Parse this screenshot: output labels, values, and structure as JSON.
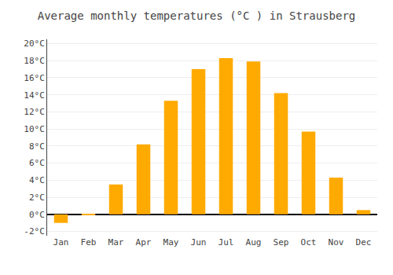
{
  "chart_data": {
    "type": "bar",
    "title": "Average monthly temperatures (°C ) in Strausberg",
    "categories": [
      "Jan",
      "Feb",
      "Mar",
      "Apr",
      "May",
      "Jun",
      "Jul",
      "Aug",
      "Sep",
      "Oct",
      "Nov",
      "Dec"
    ],
    "values": [
      -1.0,
      -0.1,
      3.5,
      8.2,
      13.3,
      17.0,
      18.3,
      17.9,
      14.2,
      9.7,
      4.3,
      0.5
    ],
    "color": "#FFAA00",
    "ylim": [
      -2.5,
      20.5
    ],
    "yticks": [
      {
        "value": -2,
        "label": "-2°C"
      },
      {
        "value": 0,
        "label": "0°C"
      },
      {
        "value": 2,
        "label": "2°C"
      },
      {
        "value": 4,
        "label": "4°C"
      },
      {
        "value": 6,
        "label": "6°C"
      },
      {
        "value": 8,
        "label": "8°C"
      },
      {
        "value": 10,
        "label": "10°C"
      },
      {
        "value": 12,
        "label": "12°C"
      },
      {
        "value": 14,
        "label": "14°C"
      },
      {
        "value": 16,
        "label": "16°C"
      },
      {
        "value": 18,
        "label": "18°C"
      },
      {
        "value": 20,
        "label": "20°C"
      }
    ],
    "grid": true
  }
}
